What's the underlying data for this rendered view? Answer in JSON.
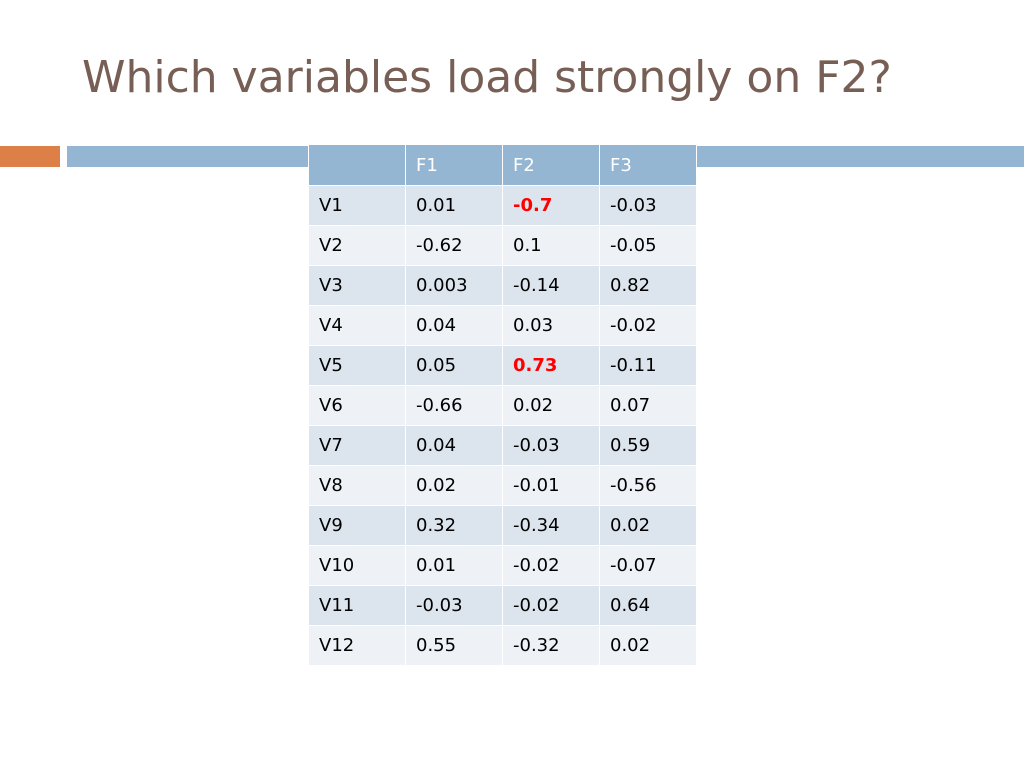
{
  "slide": {
    "title": "Which variables load strongly on F2?"
  },
  "colors": {
    "title": "#775F55",
    "accent_orange": "#DD8047",
    "accent_blue": "#94B6D2",
    "table_header": "#94B6D2",
    "row_band_dark": "#DCE5EE",
    "row_band_light": "#EEF2F7",
    "highlight": "#FF0000"
  },
  "table": {
    "headers": [
      "",
      "F1",
      "F2",
      "F3"
    ],
    "rows": [
      {
        "cells": [
          "V1",
          "0.01",
          "-0.7",
          "-0.03"
        ],
        "highlight_col": 2
      },
      {
        "cells": [
          "V2",
          "-0.62",
          "0.1",
          "-0.05"
        ]
      },
      {
        "cells": [
          "V3",
          "0.003",
          "-0.14",
          "0.82"
        ]
      },
      {
        "cells": [
          "V4",
          "0.04",
          "0.03",
          "-0.02"
        ]
      },
      {
        "cells": [
          "V5",
          "0.05",
          "0.73",
          "-0.11"
        ],
        "highlight_col": 2
      },
      {
        "cells": [
          "V6",
          "-0.66",
          "0.02",
          "0.07"
        ]
      },
      {
        "cells": [
          "V7",
          "0.04",
          "-0.03",
          "0.59"
        ]
      },
      {
        "cells": [
          "V8",
          "0.02",
          "-0.01",
          "-0.56"
        ]
      },
      {
        "cells": [
          "V9",
          "0.32",
          "-0.34",
          "0.02"
        ]
      },
      {
        "cells": [
          "V10",
          "0.01",
          "-0.02",
          "-0.07"
        ]
      },
      {
        "cells": [
          "V11",
          "-0.03",
          "-0.02",
          "0.64"
        ]
      },
      {
        "cells": [
          "V12",
          "0.55",
          "-0.32",
          "0.02"
        ]
      }
    ]
  }
}
